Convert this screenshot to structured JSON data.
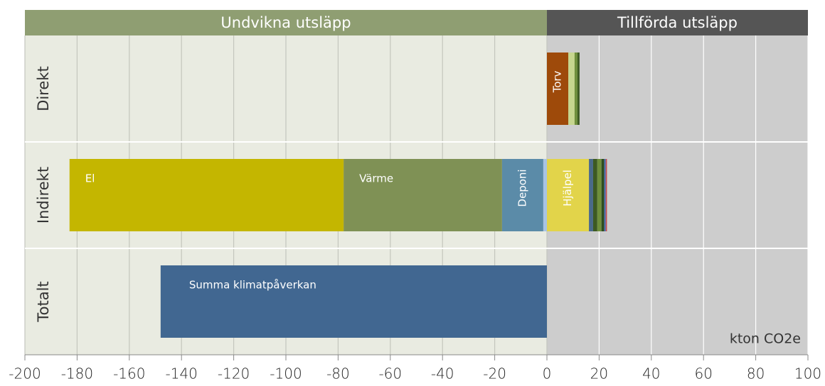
{
  "chart_data": {
    "type": "stacked_barh",
    "header_left": "Undvikna utsläpp",
    "header_right": "Tillförda utsläpp",
    "unit_label": "kton CO2e",
    "categories": [
      "Direkt",
      "Indirekt",
      "Totalt"
    ],
    "series": [
      {
        "name": "Torv",
        "color": "#9e4a0a",
        "values": [
          8.2,
          null,
          null
        ]
      },
      {
        "color": "#c6d68e",
        "values": [
          2.4,
          null,
          null
        ]
      },
      {
        "color": "#6f8f3c",
        "values": [
          1.1,
          null,
          null
        ]
      },
      {
        "color": "#3d5a22",
        "values": [
          0.8,
          null,
          null
        ]
      },
      {
        "color": "#a9c4e4",
        "values": [
          null,
          -1.4,
          null
        ]
      },
      {
        "name": "Deponi",
        "color": "#5b8ba8",
        "values": [
          null,
          -15.8,
          null
        ]
      },
      {
        "name": "Värme",
        "color": "#7f9155",
        "values": [
          null,
          -60.7,
          null
        ]
      },
      {
        "name": "El",
        "color": "#c4b600",
        "values": [
          null,
          -105,
          null
        ]
      },
      {
        "name": "Hjälpel",
        "color": "#e2d44a",
        "values": [
          null,
          16.1,
          null
        ]
      },
      {
        "color": "#4a6a8a",
        "values": [
          null,
          1.6,
          null
        ]
      },
      {
        "color": "#3d5a22",
        "values": [
          null,
          1.6,
          null
        ]
      },
      {
        "color": "#6f8f3c",
        "values": [
          null,
          1.6,
          null
        ]
      },
      {
        "color": "#2f4d1f",
        "values": [
          null,
          1.1,
          null
        ]
      },
      {
        "color": "#4472c4",
        "values": [
          null,
          0.5,
          null
        ]
      },
      {
        "color": "#c0504d",
        "values": [
          null,
          0.5,
          null
        ]
      },
      {
        "name": "Summa klimatpåverkan",
        "color": "#416791",
        "values": [
          null,
          null,
          -148
        ]
      }
    ],
    "xlim": [
      -200,
      100
    ],
    "xticks": [
      -200,
      -180,
      -160,
      -140,
      -120,
      -100,
      -80,
      -60,
      -40,
      -20,
      0,
      20,
      40,
      60,
      80,
      100
    ],
    "grid": true
  }
}
